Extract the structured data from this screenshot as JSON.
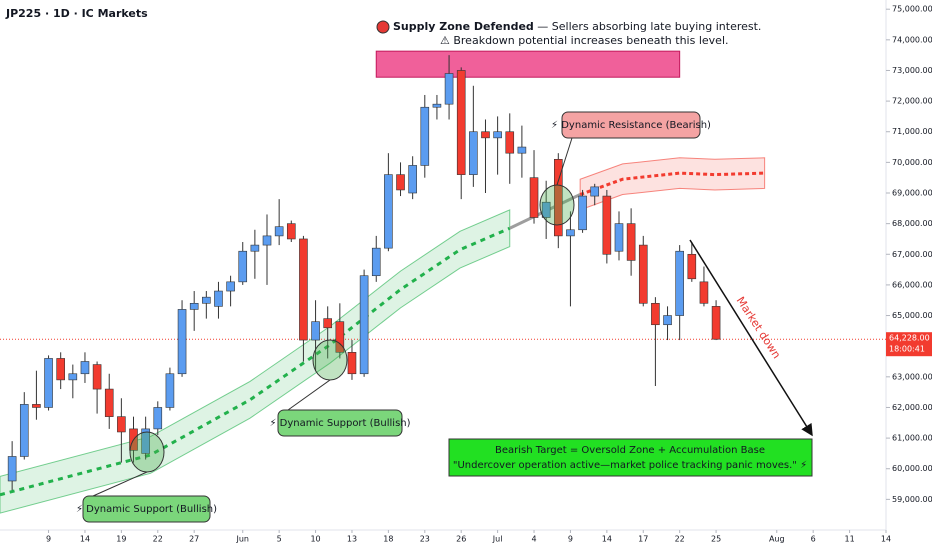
{
  "chart_data": {
    "type": "candlestick",
    "title": "JP225 · 1D · IC Markets",
    "x": [
      -3,
      -2,
      -1,
      0,
      1,
      2,
      3,
      4,
      5,
      6,
      7,
      8,
      9,
      10,
      11,
      12,
      13,
      14,
      15,
      16,
      17,
      18,
      19,
      20,
      21,
      22,
      23,
      24,
      25,
      26,
      27,
      28,
      29,
      30,
      31,
      32,
      33,
      34,
      35,
      36,
      37,
      38,
      39,
      40,
      41,
      42,
      43,
      44,
      45,
      46,
      47,
      48,
      49,
      50,
      51,
      52,
      53,
      54,
      55
    ],
    "open": [
      59600,
      60400,
      62100,
      62000,
      63600,
      62900,
      63100,
      63400,
      62600,
      61700,
      61300,
      60500,
      61300,
      62000,
      63100,
      65200,
      65400,
      65300,
      65800,
      66100,
      67100,
      67300,
      67600,
      68000,
      67500,
      64200,
      64900,
      64800,
      63800,
      63100,
      66300,
      67200,
      69600,
      69000,
      69900,
      71800,
      71900,
      73000,
      69600,
      71000,
      70800,
      71000,
      70300,
      69500,
      68200,
      70100,
      67600,
      67800,
      68900,
      68900,
      67100,
      68000,
      67300,
      65400,
      64700,
      65000,
      67000,
      66100,
      65300
    ],
    "high": [
      60900,
      62500,
      63200,
      63700,
      63800,
      63400,
      63800,
      63500,
      63100,
      62300,
      61700,
      61700,
      62200,
      63300,
      65500,
      65800,
      65800,
      66100,
      66300,
      67400,
      67800,
      68300,
      68800,
      68100,
      67600,
      65500,
      65300,
      65400,
      64200,
      66500,
      67600,
      70300,
      70000,
      70200,
      72200,
      72200,
      73500,
      73100,
      72500,
      71400,
      71500,
      71600,
      71200,
      70400,
      69400,
      70300,
      68400,
      69100,
      69300,
      69100,
      68400,
      68500,
      67600,
      65600,
      65300,
      67300,
      67400,
      66600,
      65500
    ],
    "low": [
      59300,
      60300,
      61600,
      61900,
      62600,
      62300,
      62800,
      61800,
      61300,
      60200,
      60200,
      60300,
      61100,
      61900,
      63000,
      64500,
      64900,
      64900,
      65300,
      66000,
      66200,
      66000,
      67300,
      67400,
      63500,
      63200,
      63600,
      63600,
      62900,
      63000,
      66100,
      67100,
      68900,
      68800,
      69500,
      71400,
      71400,
      68800,
      69200,
      69000,
      69600,
      69300,
      69500,
      68000,
      67500,
      67200,
      65300,
      67700,
      68600,
      66700,
      66800,
      66300,
      65300,
      62700,
      64200,
      64200,
      66100,
      65300,
      64200
    ],
    "close": [
      60400,
      62100,
      62000,
      63600,
      62900,
      63100,
      63500,
      62600,
      61700,
      61200,
      60600,
      61300,
      62000,
      63100,
      65200,
      65400,
      65600,
      65800,
      66100,
      67100,
      67300,
      67600,
      67900,
      67500,
      64200,
      64800,
      64600,
      63800,
      63100,
      66300,
      67200,
      69600,
      69100,
      69900,
      71800,
      71900,
      72900,
      69600,
      71000,
      70800,
      71000,
      70300,
      70500,
      68200,
      68700,
      67600,
      67800,
      68900,
      69200,
      67000,
      68000,
      66800,
      65400,
      64700,
      65000,
      67100,
      66200,
      65400,
      64228
    ],
    "up_color": "#5b9cf0",
    "down_color": "#f23b2f",
    "xlim": [
      -4,
      69
    ],
    "ylim": [
      58000,
      75300
    ],
    "xticks": [
      {
        "value": 0,
        "label": "9"
      },
      {
        "value": 3,
        "label": "14"
      },
      {
        "value": 6,
        "label": "19"
      },
      {
        "value": 9,
        "label": "22"
      },
      {
        "value": 12,
        "label": "27"
      },
      {
        "value": 16,
        "label": "Jun"
      },
      {
        "value": 19,
        "label": "5"
      },
      {
        "value": 22,
        "label": "10"
      },
      {
        "value": 25,
        "label": "13"
      },
      {
        "value": 28,
        "label": "18"
      },
      {
        "value": 31,
        "label": "23"
      },
      {
        "value": 34,
        "label": "26"
      },
      {
        "value": 37,
        "label": "Jul"
      },
      {
        "value": 40,
        "label": "4"
      },
      {
        "value": 43,
        "label": "9"
      },
      {
        "value": 46,
        "label": "14"
      },
      {
        "value": 49,
        "label": "17"
      },
      {
        "value": 52,
        "label": "22"
      },
      {
        "value": 55,
        "label": "25"
      },
      {
        "value": 60,
        "label": "Aug"
      },
      {
        "value": 63,
        "label": "6"
      },
      {
        "value": 66,
        "label": "11"
      },
      {
        "value": 69,
        "label": "14"
      }
    ],
    "yticks": [
      {
        "value": 59000,
        "label": "59,000.00"
      },
      {
        "value": 60000,
        "label": "60,000.00"
      },
      {
        "value": 61000,
        "label": "61,000.00"
      },
      {
        "value": 62000,
        "label": "62,000.00"
      },
      {
        "value": 63000,
        "label": "63,000.00"
      },
      {
        "value": 64000,
        "label": "64,000.00"
      },
      {
        "value": 65000,
        "label": "65,000.00"
      },
      {
        "value": 66000,
        "label": "66,000.00"
      },
      {
        "value": 67000,
        "label": "67,000.00"
      },
      {
        "value": 68000,
        "label": "68,000.00"
      },
      {
        "value": 69000,
        "label": "69,000.00"
      },
      {
        "value": 70000,
        "label": "70,000.00"
      },
      {
        "value": 71000,
        "label": "71,000.00"
      },
      {
        "value": 72000,
        "label": "72,000.00"
      },
      {
        "value": 73000,
        "label": "73,000.00"
      },
      {
        "value": 74000,
        "label": "74,000.00"
      },
      {
        "value": 75000,
        "label": "75,000.00"
      }
    ],
    "last_price": {
      "value": 64228,
      "label": "64,228.00",
      "countdown": "18:00:41",
      "color": "#f23b2f"
    },
    "support_channel": {
      "x": [
        -4,
        8.4,
        16.6,
        23.2,
        29,
        33.9,
        38
      ],
      "mid": [
        59150,
        60450,
        62250,
        64050,
        65850,
        67150,
        67850
      ],
      "half_width": 600,
      "color": "#22b14c"
    },
    "resistance_channel": {
      "x": [
        43.8,
        47.3,
        52,
        54.9,
        59
      ],
      "mid": [
        68950,
        69450,
        69650,
        69600,
        69650
      ],
      "half_width": 500,
      "color": "#f23b2f"
    },
    "supply_zone": {
      "x": [
        27,
        52
      ],
      "y": [
        72780,
        73630
      ],
      "color": "#f0609a"
    },
    "annotations": {
      "supply_title": "Supply Zone Defended",
      "supply_text": " — Sellers absorbing late buying interest.",
      "supply_text2": "⚠ Breakdown potential increases beneath this level.",
      "resistance": "⚡ Dynamic Resistance (Bearish)",
      "support_1": "⚡ Dynamic Support (Bullish)",
      "support_2": "⚡ Dynamic Support (Bullish)",
      "target_line1": "Bearish Target = Oversold Zone + Accumulation Base",
      "target_line2": "\"Undercover operation active—market police tracking panic moves.\" ⚡",
      "market_down": "Market down"
    }
  }
}
